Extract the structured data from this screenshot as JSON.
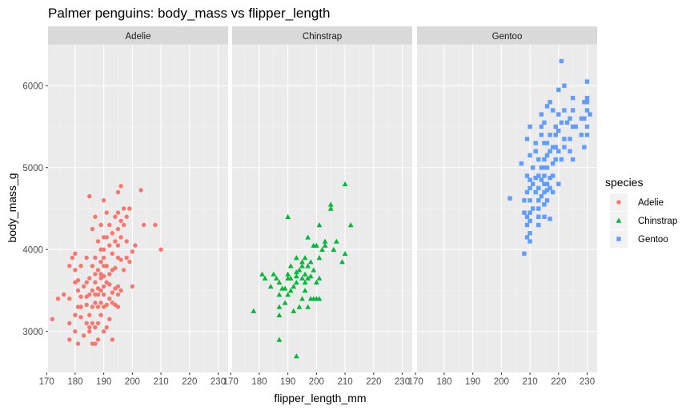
{
  "chart_data": {
    "type": "scatter",
    "title": "Palmer penguins: body_mass vs flipper_length",
    "xlabel": "flipper_length_mm",
    "ylabel": "body_mass_g",
    "xlim": [
      170.5,
      233.5
    ],
    "ylim": [
      2500,
      6500
    ],
    "x_ticks": [
      170,
      180,
      190,
      200,
      210,
      220,
      230
    ],
    "x_tick_labels": [
      "170",
      "180",
      "190",
      "200",
      "210",
      "220",
      "230"
    ],
    "y_ticks": [
      3000,
      4000,
      5000,
      6000
    ],
    "y_tick_labels": [
      "3000",
      "4000",
      "5000",
      "6000"
    ],
    "grid": true,
    "facets": [
      "Adelie",
      "Chinstrap",
      "Gentoo"
    ],
    "legend": {
      "title": "species",
      "placement": "right",
      "entries": [
        "Adelie",
        "Chinstrap",
        "Gentoo"
      ]
    },
    "series": [
      {
        "name": "Adelie",
        "color": "#F8766D",
        "shape": "circle",
        "points": [
          [
            172,
            3150
          ],
          [
            174,
            3400
          ],
          [
            176,
            3450
          ],
          [
            178,
            2900
          ],
          [
            178,
            3100
          ],
          [
            178,
            3400
          ],
          [
            178,
            3800
          ],
          [
            179,
            3900
          ],
          [
            180,
            3000
          ],
          [
            180,
            3200
          ],
          [
            180,
            3600
          ],
          [
            180,
            3750
          ],
          [
            180,
            3950
          ],
          [
            181,
            2850
          ],
          [
            181,
            3300
          ],
          [
            181,
            3500
          ],
          [
            181,
            3625
          ],
          [
            182,
            3175
          ],
          [
            182,
            3300
          ],
          [
            182,
            3425
          ],
          [
            182,
            3800
          ],
          [
            183,
            2950
          ],
          [
            183,
            3550
          ],
          [
            184,
            3100
          ],
          [
            184,
            3325
          ],
          [
            184,
            3425
          ],
          [
            184,
            3600
          ],
          [
            184,
            3900
          ],
          [
            185,
            3000
          ],
          [
            185,
            3050
          ],
          [
            185,
            3200
          ],
          [
            185,
            3450
          ],
          [
            185,
            3650
          ],
          [
            185,
            4650
          ],
          [
            186,
            2850
          ],
          [
            186,
            3100
          ],
          [
            186,
            3300
          ],
          [
            186,
            3500
          ],
          [
            186,
            3800
          ],
          [
            186,
            4250
          ],
          [
            187,
            2850
          ],
          [
            187,
            3050
          ],
          [
            187,
            3350
          ],
          [
            187,
            3450
          ],
          [
            187,
            3600
          ],
          [
            187,
            3700
          ],
          [
            187,
            3900
          ],
          [
            187,
            4400
          ],
          [
            188,
            2900
          ],
          [
            188,
            3100
          ],
          [
            188,
            3300
          ],
          [
            188,
            3450
          ],
          [
            188,
            3525
          ],
          [
            188,
            3750
          ],
          [
            188,
            4100
          ],
          [
            189,
            3200
          ],
          [
            189,
            3350
          ],
          [
            189,
            3500
          ],
          [
            189,
            3650
          ],
          [
            189,
            3700
          ],
          [
            189,
            3850
          ],
          [
            189,
            4000
          ],
          [
            189,
            4300
          ],
          [
            190,
            3000
          ],
          [
            190,
            3300
          ],
          [
            190,
            3450
          ],
          [
            190,
            3550
          ],
          [
            190,
            3675
          ],
          [
            190,
            3800
          ],
          [
            190,
            3900
          ],
          [
            190,
            4000
          ],
          [
            190,
            4150
          ],
          [
            190,
            4600
          ],
          [
            191,
            3050
          ],
          [
            191,
            3325
          ],
          [
            191,
            3600
          ],
          [
            191,
            3800
          ],
          [
            191,
            4150
          ],
          [
            191,
            4450
          ],
          [
            192,
            3150
          ],
          [
            192,
            3400
          ],
          [
            192,
            3575
          ],
          [
            192,
            3700
          ],
          [
            192,
            4050
          ],
          [
            192,
            4300
          ],
          [
            193,
            2900
          ],
          [
            193,
            3350
          ],
          [
            193,
            3475
          ],
          [
            193,
            3750
          ],
          [
            193,
            3950
          ],
          [
            193,
            4200
          ],
          [
            194,
            3325
          ],
          [
            194,
            3525
          ],
          [
            194,
            3775
          ],
          [
            194,
            4100
          ],
          [
            194,
            4400
          ],
          [
            195,
            3300
          ],
          [
            195,
            3450
          ],
          [
            195,
            3550
          ],
          [
            195,
            3900
          ],
          [
            195,
            4050
          ],
          [
            195,
            4250
          ],
          [
            195,
            4450
          ],
          [
            195,
            4700
          ],
          [
            196,
            3500
          ],
          [
            196,
            3875
          ],
          [
            196,
            4150
          ],
          [
            196,
            4350
          ],
          [
            196,
            4775
          ],
          [
            197,
            3750
          ],
          [
            197,
            4300
          ],
          [
            197,
            4500
          ],
          [
            198,
            3900
          ],
          [
            198,
            4100
          ],
          [
            198,
            4400
          ],
          [
            199,
            3850
          ],
          [
            199,
            4500
          ],
          [
            200,
            3550
          ],
          [
            200,
            3975
          ],
          [
            201,
            4050
          ],
          [
            203,
            4725
          ],
          [
            204,
            4300
          ],
          [
            208,
            4300
          ],
          [
            210,
            4000
          ]
        ]
      },
      {
        "name": "Chinstrap",
        "color": "#00BA38",
        "shape": "triangle",
        "points": [
          [
            178,
            3250
          ],
          [
            181,
            3700
          ],
          [
            182,
            3650
          ],
          [
            184,
            3550
          ],
          [
            185,
            3700
          ],
          [
            186,
            3650
          ],
          [
            187,
            3200
          ],
          [
            187,
            3300
          ],
          [
            187,
            3450
          ],
          [
            187,
            3600
          ],
          [
            187,
            2900
          ],
          [
            188,
            3525
          ],
          [
            189,
            3350
          ],
          [
            189,
            3525
          ],
          [
            190,
            3450
          ],
          [
            190,
            3650
          ],
          [
            190,
            3700
          ],
          [
            190,
            4400
          ],
          [
            191,
            3500
          ],
          [
            191,
            3650
          ],
          [
            191,
            3800
          ],
          [
            192,
            3250
          ],
          [
            192,
            3550
          ],
          [
            193,
            2700
          ],
          [
            193,
            3600
          ],
          [
            193,
            3675
          ],
          [
            193,
            3725
          ],
          [
            193,
            3900
          ],
          [
            194,
            3300
          ],
          [
            194,
            3750
          ],
          [
            195,
            3400
          ],
          [
            195,
            3650
          ],
          [
            195,
            3800
          ],
          [
            195,
            3850
          ],
          [
            196,
            3500
          ],
          [
            196,
            3600
          ],
          [
            196,
            3700
          ],
          [
            196,
            3900
          ],
          [
            197,
            3300
          ],
          [
            197,
            3650
          ],
          [
            197,
            3800
          ],
          [
            197,
            4150
          ],
          [
            198,
            3400
          ],
          [
            198,
            3675
          ],
          [
            198,
            3850
          ],
          [
            199,
            3400
          ],
          [
            199,
            3750
          ],
          [
            199,
            4050
          ],
          [
            200,
            3400
          ],
          [
            200,
            3600
          ],
          [
            200,
            4050
          ],
          [
            201,
            3400
          ],
          [
            201,
            3650
          ],
          [
            201,
            3900
          ],
          [
            201,
            4300
          ],
          [
            202,
            4000
          ],
          [
            203,
            4050
          ],
          [
            203,
            4100
          ],
          [
            205,
            4500
          ],
          [
            205,
            4550
          ],
          [
            206,
            4000
          ],
          [
            207,
            4100
          ],
          [
            209,
            3850
          ],
          [
            210,
            3950
          ],
          [
            210,
            4800
          ],
          [
            212,
            4300
          ]
        ]
      },
      {
        "name": "Gentoo",
        "color": "#619CFF",
        "shape": "square",
        "points": [
          [
            203,
            4625
          ],
          [
            207,
            5050
          ],
          [
            208,
            3950
          ],
          [
            208,
            4450
          ],
          [
            208,
            4600
          ],
          [
            209,
            4150
          ],
          [
            209,
            4300
          ],
          [
            209,
            4400
          ],
          [
            209,
            4700
          ],
          [
            209,
            4900
          ],
          [
            209,
            5350
          ],
          [
            210,
            4100
          ],
          [
            210,
            4200
          ],
          [
            210,
            4350
          ],
          [
            210,
            4450
          ],
          [
            210,
            4600
          ],
          [
            210,
            4750
          ],
          [
            210,
            4850
          ],
          [
            210,
            5150
          ],
          [
            210,
            5500
          ],
          [
            211,
            4500
          ],
          [
            211,
            4800
          ],
          [
            211,
            5000
          ],
          [
            212,
            4700
          ],
          [
            212,
            4875
          ],
          [
            212,
            5200
          ],
          [
            212,
            5300
          ],
          [
            213,
            4300
          ],
          [
            213,
            4400
          ],
          [
            213,
            4500
          ],
          [
            213,
            4600
          ],
          [
            213,
            4750
          ],
          [
            213,
            4900
          ],
          [
            213,
            5100
          ],
          [
            214,
            4650
          ],
          [
            214,
            4850
          ],
          [
            214,
            5000
          ],
          [
            214,
            5400
          ],
          [
            214,
            5500
          ],
          [
            214,
            5650
          ],
          [
            215,
            4400
          ],
          [
            215,
            4550
          ],
          [
            215,
            4700
          ],
          [
            215,
            4800
          ],
          [
            215,
            4900
          ],
          [
            215,
            5000
          ],
          [
            215,
            5100
          ],
          [
            215,
            5300
          ],
          [
            215,
            5550
          ],
          [
            216,
            4600
          ],
          [
            216,
            4725
          ],
          [
            216,
            4800
          ],
          [
            216,
            5000
          ],
          [
            216,
            5150
          ],
          [
            216,
            5750
          ],
          [
            216,
            5300
          ],
          [
            217,
            4375
          ],
          [
            217,
            4750
          ],
          [
            217,
            4875
          ],
          [
            217,
            5200
          ],
          [
            217,
            5400
          ],
          [
            217,
            5800
          ],
          [
            218,
            4700
          ],
          [
            218,
            4900
          ],
          [
            218,
            5050
          ],
          [
            218,
            5250
          ],
          [
            218,
            5700
          ],
          [
            219,
            5100
          ],
          [
            219,
            5250
          ],
          [
            219,
            5400
          ],
          [
            219,
            5500
          ],
          [
            220,
            4800
          ],
          [
            220,
            5200
          ],
          [
            220,
            5450
          ],
          [
            220,
            5650
          ],
          [
            220,
            5950
          ],
          [
            221,
            5100
          ],
          [
            221,
            5550
          ],
          [
            221,
            6300
          ],
          [
            222,
            5250
          ],
          [
            222,
            5350
          ],
          [
            222,
            5700
          ],
          [
            222,
            6000
          ],
          [
            223,
            5550
          ],
          [
            224,
            5200
          ],
          [
            224,
            5350
          ],
          [
            224,
            5600
          ],
          [
            225,
            5100
          ],
          [
            225,
            5500
          ],
          [
            225,
            5700
          ],
          [
            225,
            5850
          ],
          [
            226,
            5500
          ],
          [
            228,
            5400
          ],
          [
            228,
            5600
          ],
          [
            229,
            5250
          ],
          [
            229,
            5600
          ],
          [
            229,
            5800
          ],
          [
            230,
            5500
          ],
          [
            230,
            5700
          ],
          [
            230,
            5800
          ],
          [
            230,
            6050
          ],
          [
            231,
            5650
          ],
          [
            230,
            5850
          ],
          [
            230,
            5400
          ]
        ]
      }
    ]
  }
}
